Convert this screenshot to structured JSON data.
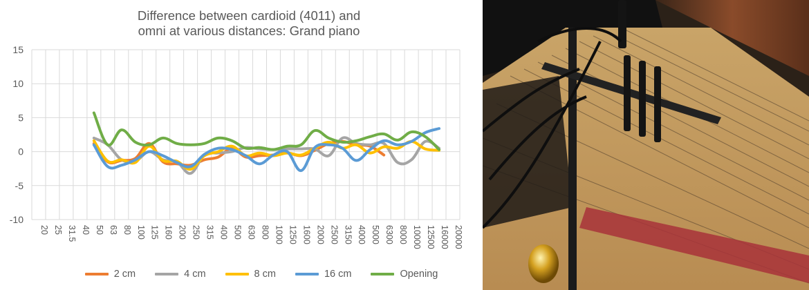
{
  "chart_data": {
    "type": "line",
    "title": "Difference between cardioid (4011) and omni at various distances: Grand piano",
    "title_lines": [
      "Difference between cardioid (4011) and",
      "omni at various distances: Grand piano"
    ],
    "xlabel": "",
    "ylabel": "",
    "ylim": [
      -10,
      15
    ],
    "yticks": [
      "15",
      "10",
      "5",
      "0",
      "-5",
      "-10"
    ],
    "categories": [
      "20",
      "25",
      "31.5",
      "40",
      "50",
      "63",
      "80",
      "100",
      "125",
      "160",
      "200",
      "250",
      "315",
      "400",
      "500",
      "630",
      "800",
      "1000",
      "1250",
      "1600",
      "2000",
      "2500",
      "3150",
      "4000",
      "5000",
      "6300",
      "8000",
      "10000",
      "12500",
      "16000",
      "20000"
    ],
    "grid": true,
    "legend_position": "bottom",
    "series": [
      {
        "name": "2 cm",
        "color": "#ED7D31",
        "values": [
          null,
          null,
          null,
          null,
          1.2,
          -1.5,
          -1.3,
          -1.0,
          1.2,
          -1.5,
          -1.8,
          -2.0,
          -1.2,
          -0.8,
          0.5,
          -0.8,
          -0.6,
          -0.5,
          -0.2,
          -0.6,
          0.2,
          1.2,
          1.5,
          1.0,
          0.8,
          -0.5,
          null,
          null,
          null,
          null,
          null
        ]
      },
      {
        "name": "4 cm",
        "color": "#A5A5A5",
        "values": [
          null,
          null,
          null,
          null,
          2.0,
          1.0,
          -1.2,
          -1.4,
          0.0,
          -1.2,
          -1.5,
          -3.2,
          -0.5,
          -0.2,
          0.0,
          0.6,
          0.4,
          0.3,
          0.4,
          0.4,
          0.4,
          -0.6,
          2.0,
          1.2,
          1.0,
          1.2,
          -1.6,
          -1.2,
          1.5,
          0.5,
          null
        ]
      },
      {
        "name": "8 cm",
        "color": "#FFC000",
        "values": [
          null,
          null,
          null,
          null,
          1.6,
          -1.4,
          -1.2,
          -1.6,
          0.8,
          -1.3,
          -1.4,
          -2.6,
          -0.6,
          0.0,
          0.8,
          -0.6,
          -0.2,
          -0.6,
          -0.2,
          -0.5,
          0.5,
          1.4,
          0.5,
          1.0,
          -0.2,
          0.7,
          0.5,
          1.5,
          0.4,
          0.2,
          null
        ]
      },
      {
        "name": "16 cm",
        "color": "#5B9BD5",
        "values": [
          null,
          null,
          null,
          null,
          1.0,
          -2.2,
          -2.0,
          -1.2,
          0.0,
          -0.6,
          -1.6,
          -2.2,
          -0.4,
          0.5,
          0.3,
          -0.6,
          -1.8,
          -0.5,
          0.0,
          -2.8,
          0.6,
          1.0,
          0.5,
          -1.3,
          0.3,
          1.6,
          1.0,
          1.5,
          2.8,
          3.4,
          null
        ]
      },
      {
        "name": "Opening",
        "color": "#70AD47",
        "values": [
          null,
          null,
          null,
          null,
          5.7,
          1.0,
          3.2,
          1.4,
          1.0,
          2.0,
          1.2,
          1.0,
          1.2,
          2.0,
          1.6,
          0.5,
          0.6,
          0.3,
          0.8,
          1.0,
          3.1,
          2.0,
          1.4,
          1.6,
          2.2,
          2.6,
          1.7,
          2.9,
          2.2,
          0.3,
          null
        ]
      }
    ]
  }
}
